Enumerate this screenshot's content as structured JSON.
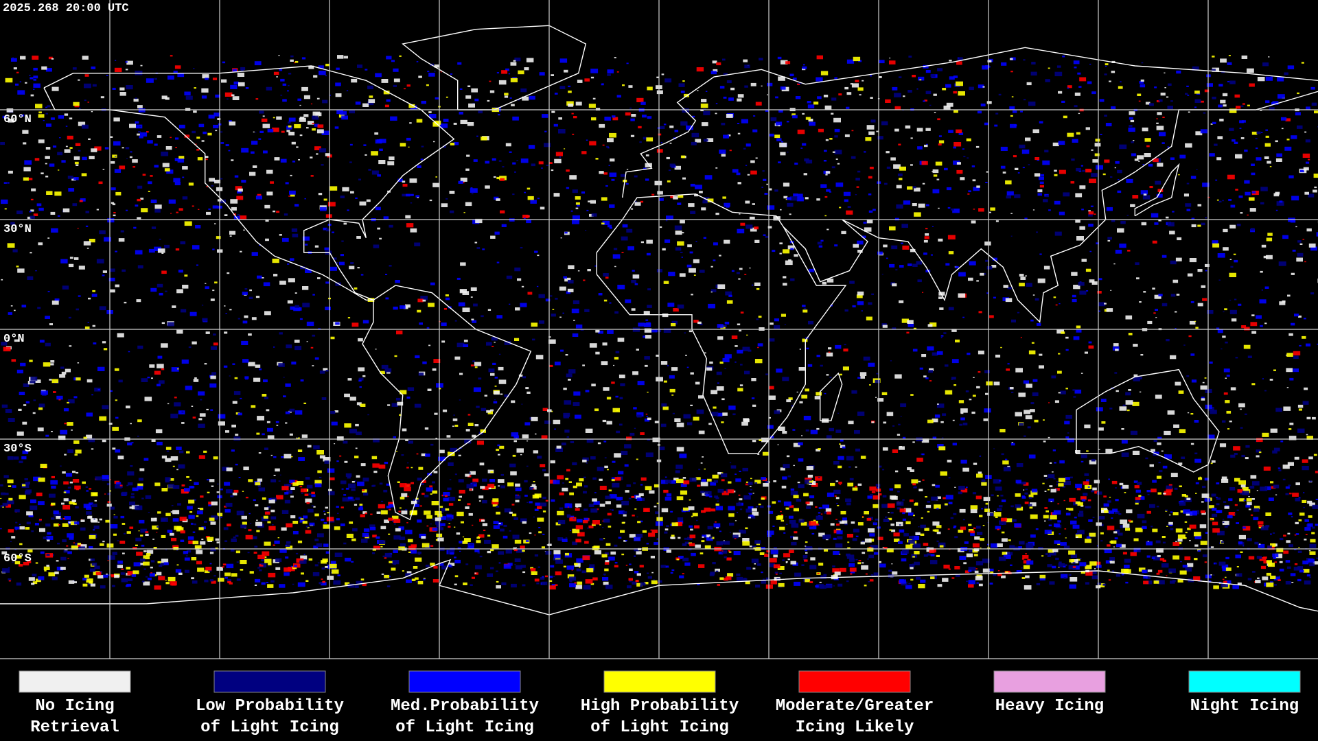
{
  "timestamp": "2025.268 20:00 UTC",
  "latitude_labels": [
    "60°N",
    "30°N",
    "0°N",
    "30°S",
    "60°S"
  ],
  "legend": [
    {
      "lines": [
        "No Icing",
        "Retrieval"
      ],
      "color": "#f0f0f0"
    },
    {
      "lines": [
        "Low Probability",
        "of Light Icing"
      ],
      "color": "#000080"
    },
    {
      "lines": [
        "Med.Probability",
        "of Light Icing"
      ],
      "color": "#0000ff"
    },
    {
      "lines": [
        "High Probability",
        "of Light Icing"
      ],
      "color": "#ffff00"
    },
    {
      "lines": [
        "Moderate/Greater",
        "Icing Likely"
      ],
      "color": "#ff0000"
    },
    {
      "lines": [
        "Heavy Icing"
      ],
      "color": "#e8a0e0"
    },
    {
      "lines": [
        "Night Icing"
      ],
      "color": "#00ffff"
    }
  ]
}
